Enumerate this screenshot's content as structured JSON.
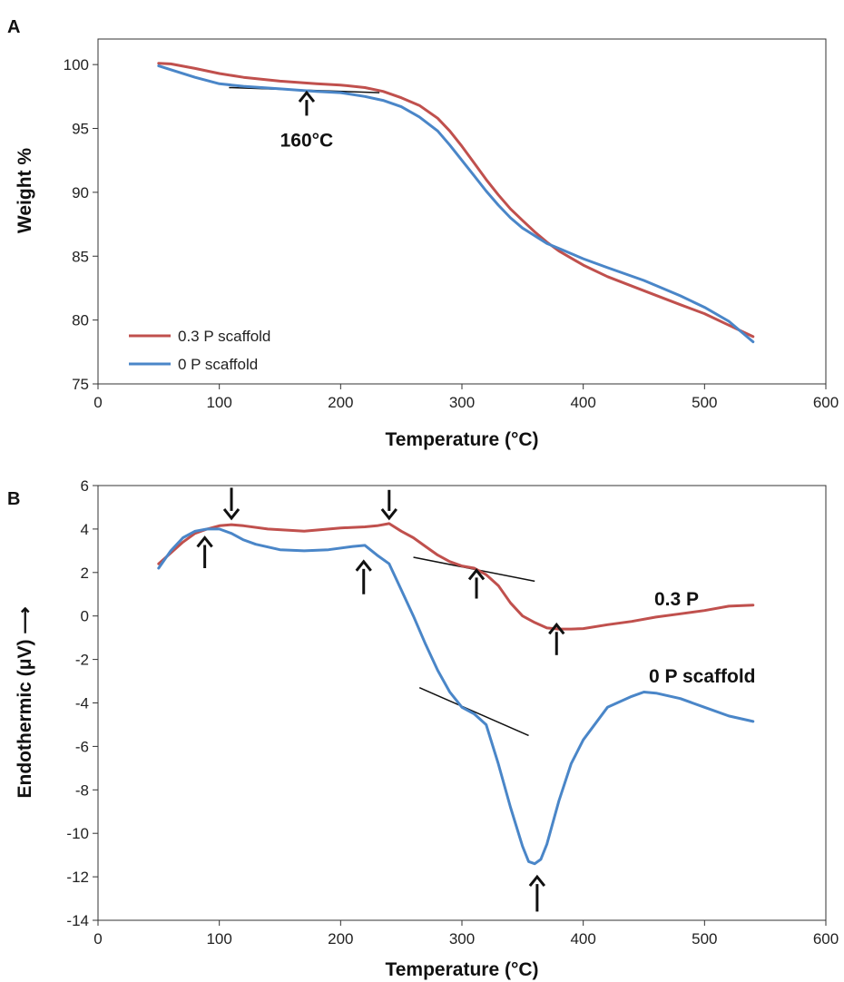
{
  "chart_data": [
    {
      "panel": "A",
      "type": "line",
      "xlabel": "Temperature (°C)",
      "ylabel": "Weight %",
      "xlim": [
        0,
        600
      ],
      "ylim": [
        75,
        102
      ],
      "xticks": [
        0,
        100,
        200,
        300,
        400,
        500,
        600
      ],
      "yticks": [
        75,
        80,
        85,
        90,
        95,
        100
      ],
      "grid": false,
      "legend_placement": "bottom-left",
      "series": [
        {
          "name": "0.3 P scaffold",
          "color": "#c0504d",
          "x": [
            50,
            60,
            80,
            100,
            120,
            150,
            180,
            200,
            220,
            235,
            250,
            265,
            280,
            290,
            300,
            310,
            320,
            330,
            340,
            350,
            360,
            370,
            380,
            400,
            420,
            450,
            480,
            500,
            520,
            540
          ],
          "y": [
            100.1,
            100.05,
            99.7,
            99.3,
            99.0,
            98.7,
            98.5,
            98.4,
            98.2,
            97.9,
            97.4,
            96.8,
            95.8,
            94.8,
            93.6,
            92.3,
            91.0,
            89.8,
            88.7,
            87.8,
            86.9,
            86.1,
            85.4,
            84.3,
            83.4,
            82.3,
            81.2,
            80.5,
            79.6,
            78.7
          ]
        },
        {
          "name": "0 P scaffold",
          "color": "#4a86c8",
          "x": [
            50,
            60,
            80,
            100,
            120,
            150,
            180,
            200,
            220,
            235,
            250,
            265,
            280,
            290,
            300,
            310,
            320,
            330,
            340,
            350,
            360,
            370,
            380,
            400,
            420,
            450,
            480,
            500,
            520,
            540
          ],
          "y": [
            99.9,
            99.6,
            99.0,
            98.5,
            98.3,
            98.1,
            97.9,
            97.8,
            97.5,
            97.2,
            96.7,
            95.9,
            94.8,
            93.7,
            92.5,
            91.3,
            90.1,
            89.0,
            88.0,
            87.2,
            86.6,
            86.0,
            85.6,
            84.8,
            84.1,
            83.1,
            81.9,
            81.0,
            79.9,
            78.3
          ]
        }
      ],
      "annotations": [
        {
          "text": "160°C",
          "arrow_x": 172,
          "arrow_from_y": 96.0,
          "arrow_to_y": 97.8
        }
      ],
      "reference_lines": [
        {
          "x": [
            108,
            232
          ],
          "y": [
            98.2,
            97.8
          ]
        }
      ]
    },
    {
      "panel": "B",
      "type": "line",
      "xlabel": "Temperature (°C)",
      "ylabel": "Endothermic (μV) ⟶",
      "xlim": [
        0,
        600
      ],
      "ylim": [
        -14,
        6
      ],
      "xticks": [
        0,
        100,
        200,
        300,
        400,
        500,
        600
      ],
      "yticks": [
        -14,
        -12,
        -10,
        -8,
        -6,
        -4,
        -2,
        0,
        2,
        4,
        6
      ],
      "grid": false,
      "series": [
        {
          "name": "0.3 P",
          "color": "#c0504d",
          "x": [
            50,
            60,
            70,
            80,
            90,
            100,
            110,
            120,
            140,
            170,
            200,
            220,
            230,
            240,
            250,
            260,
            270,
            280,
            290,
            300,
            310,
            320,
            330,
            340,
            350,
            360,
            370,
            380,
            390,
            400,
            420,
            440,
            460,
            480,
            500,
            520,
            540
          ],
          "y": [
            2.4,
            2.9,
            3.4,
            3.8,
            4.0,
            4.15,
            4.2,
            4.15,
            4.0,
            3.9,
            4.05,
            4.1,
            4.15,
            4.25,
            3.9,
            3.6,
            3.2,
            2.8,
            2.5,
            2.3,
            2.2,
            1.9,
            1.4,
            0.6,
            0.0,
            -0.3,
            -0.55,
            -0.6,
            -0.6,
            -0.58,
            -0.4,
            -0.25,
            -0.05,
            0.1,
            0.25,
            0.45,
            0.5
          ]
        },
        {
          "name": "0 P scaffold",
          "color": "#4a86c8",
          "x": [
            50,
            60,
            70,
            80,
            90,
            100,
            110,
            120,
            130,
            150,
            170,
            190,
            210,
            220,
            230,
            240,
            250,
            260,
            270,
            280,
            290,
            300,
            310,
            320,
            330,
            340,
            350,
            355,
            360,
            365,
            370,
            380,
            390,
            400,
            420,
            440,
            450,
            460,
            480,
            500,
            520,
            540
          ],
          "y": [
            2.2,
            3.0,
            3.6,
            3.9,
            4.0,
            4.0,
            3.8,
            3.5,
            3.3,
            3.05,
            3.0,
            3.05,
            3.2,
            3.25,
            2.8,
            2.4,
            1.2,
            0.0,
            -1.3,
            -2.5,
            -3.5,
            -4.2,
            -4.5,
            -5.0,
            -6.8,
            -8.8,
            -10.6,
            -11.3,
            -11.4,
            -11.2,
            -10.5,
            -8.5,
            -6.8,
            -5.7,
            -4.2,
            -3.7,
            -3.5,
            -3.55,
            -3.8,
            -4.2,
            -4.6,
            -4.85
          ]
        }
      ],
      "annotations": [
        {
          "text": "0.3 P"
        },
        {
          "text": "0 P scaffold"
        }
      ],
      "arrows": [
        {
          "x": 110,
          "direction": "down",
          "from_y": 5.9,
          "to_y": 4.5
        },
        {
          "x": 240,
          "direction": "down",
          "from_y": 5.8,
          "to_y": 4.5
        },
        {
          "x": 88,
          "direction": "up",
          "from_y": 2.2,
          "to_y": 3.6
        },
        {
          "x": 219,
          "direction": "up",
          "from_y": 1.0,
          "to_y": 2.5
        },
        {
          "x": 312,
          "direction": "up",
          "from_y": 0.8,
          "to_y": 2.1
        },
        {
          "x": 378,
          "direction": "up",
          "from_y": -1.8,
          "to_y": -0.4
        },
        {
          "x": 362,
          "direction": "up",
          "from_y": -13.6,
          "to_y": -12.0
        }
      ],
      "reference_lines": [
        {
          "x": [
            260,
            360
          ],
          "y": [
            2.7,
            1.6
          ]
        },
        {
          "x": [
            265,
            355
          ],
          "y": [
            -3.3,
            -5.5
          ]
        }
      ]
    }
  ]
}
